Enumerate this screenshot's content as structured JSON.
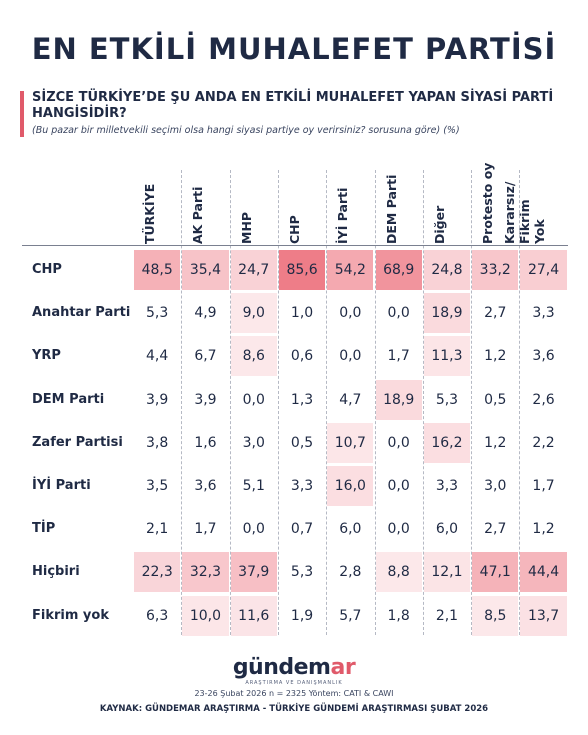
{
  "title": "EN ETKİLİ MUHALEFET PARTİSİ",
  "question": "SİZCE TÜRKİYE’DE ŞU ANDA EN ETKİLİ MUHALEFET YAPAN SİYASİ PARTİ HANGİSİDİR?",
  "subquestion": "(Bu pazar bir milletvekili seçimi olsa hangi siyasi partiye oy verirsiniz? sorusuna göre) (%)",
  "chart_data": {
    "type": "table",
    "columns": [
      "TÜRKİYE",
      "AK Parti",
      "MHP",
      "CHP",
      "İYİ Parti",
      "DEM Parti",
      "Diğer",
      "Protesto oy",
      "Kararsız/ Fikrim Yok"
    ],
    "rows": [
      {
        "label": "CHP",
        "values": [
          "48,5",
          "35,4",
          "24,7",
          "85,6",
          "54,2",
          "68,9",
          "24,8",
          "33,2",
          "27,4"
        ]
      },
      {
        "label": "Anahtar Parti",
        "values": [
          "5,3",
          "4,9",
          "9,0",
          "1,0",
          "0,0",
          "0,0",
          "18,9",
          "2,7",
          "3,3"
        ]
      },
      {
        "label": "YRP",
        "values": [
          "4,4",
          "6,7",
          "8,6",
          "0,6",
          "0,0",
          "1,7",
          "11,3",
          "1,2",
          "3,6"
        ]
      },
      {
        "label": "DEM Parti",
        "values": [
          "3,9",
          "3,9",
          "0,0",
          "1,3",
          "4,7",
          "18,9",
          "5,3",
          "0,5",
          "2,6"
        ]
      },
      {
        "label": "Zafer Partisi",
        "values": [
          "3,8",
          "1,6",
          "3,0",
          "0,5",
          "10,7",
          "0,0",
          "16,2",
          "1,2",
          "2,2"
        ]
      },
      {
        "label": "İYİ Parti",
        "values": [
          "3,5",
          "3,6",
          "5,1",
          "3,3",
          "16,0",
          "0,0",
          "3,3",
          "3,0",
          "1,7"
        ]
      },
      {
        "label": "TİP",
        "values": [
          "2,1",
          "1,7",
          "0,0",
          "0,7",
          "6,0",
          "0,0",
          "6,0",
          "2,7",
          "1,2"
        ]
      },
      {
        "label": "Hiçbiri",
        "values": [
          "22,3",
          "32,3",
          "37,9",
          "5,3",
          "2,8",
          "8,8",
          "12,1",
          "47,1",
          "44,4"
        ]
      },
      {
        "label": "Fikrim yok",
        "values": [
          "6,3",
          "10,0",
          "11,6",
          "1,9",
          "5,7",
          "1,8",
          "2,1",
          "8,5",
          "13,7"
        ]
      }
    ],
    "unit": "%",
    "heat_color": "#e8505f"
  },
  "footer": {
    "logo_main": "gündem",
    "logo_accent": "ar",
    "logo_sub": "ARAŞTIRMA VE DANIŞMANLIK",
    "meta": "23-26 Şubat 2026 n = 2325 Yöntem: CATI & CAWI",
    "source": "KAYNAK: GÜNDEMAR ARAŞTIRMA - TÜRKİYE GÜNDEMİ ARAŞTIRMASI ŞUBAT 2026"
  }
}
